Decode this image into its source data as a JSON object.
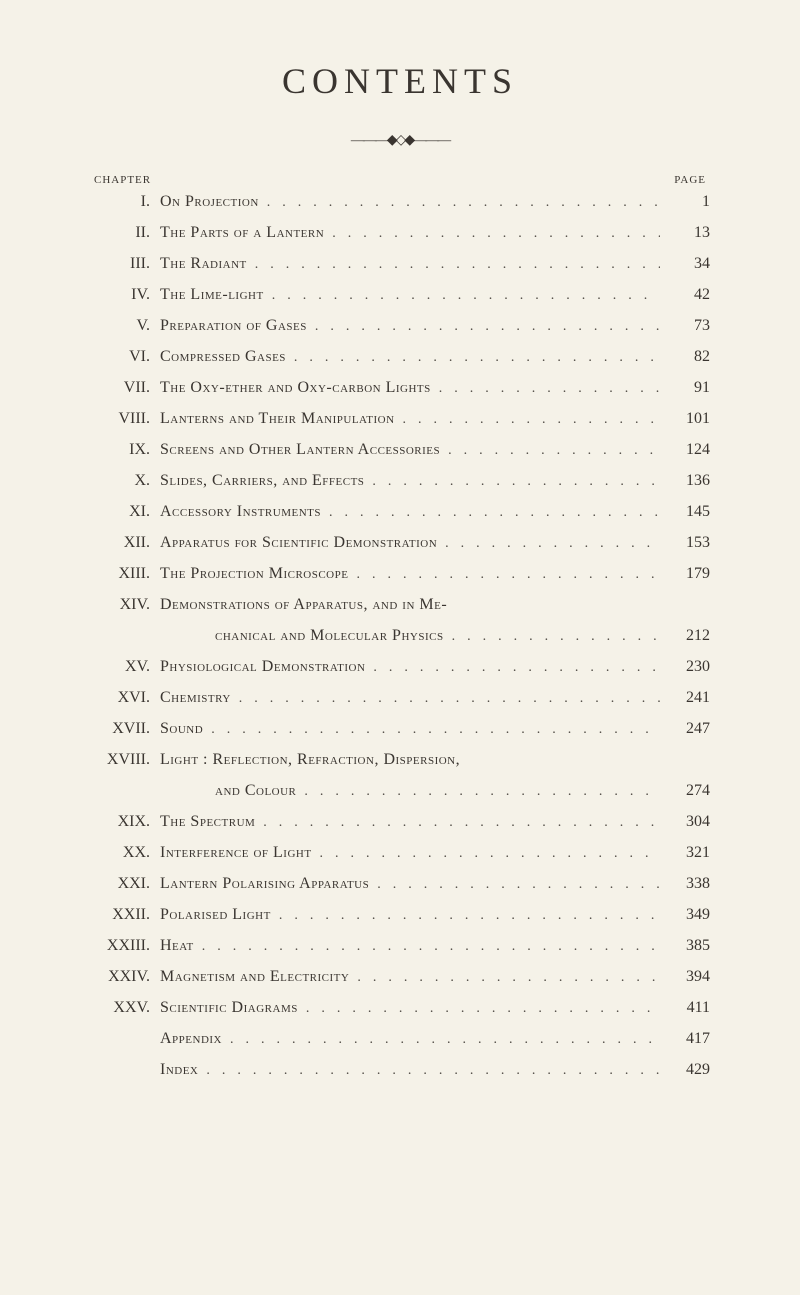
{
  "title": "CONTENTS",
  "ornament": "———◆◇◆———",
  "header": {
    "left": "CHAPTER",
    "right": "PAGE"
  },
  "entries": [
    {
      "roman": "I.",
      "text": "On Projection",
      "page": "1"
    },
    {
      "roman": "II.",
      "text": "The Parts of a Lantern",
      "page": "13"
    },
    {
      "roman": "III.",
      "text": "The Radiant",
      "page": "34"
    },
    {
      "roman": "IV.",
      "text": "The Lime-light",
      "page": "42"
    },
    {
      "roman": "V.",
      "text": "Preparation of Gases",
      "page": "73"
    },
    {
      "roman": "VI.",
      "text": "Compressed Gases",
      "page": "82"
    },
    {
      "roman": "VII.",
      "text": "The Oxy-ether and Oxy-carbon Lights",
      "page": "91"
    },
    {
      "roman": "VIII.",
      "text": "Lanterns and Their Manipulation",
      "page": "101"
    },
    {
      "roman": "IX.",
      "text": "Screens and Other Lantern Accessories",
      "page": "124"
    },
    {
      "roman": "X.",
      "text": "Slides, Carriers, and Effects",
      "page": "136"
    },
    {
      "roman": "XI.",
      "text": "Accessory Instruments",
      "page": "145"
    },
    {
      "roman": "XII.",
      "text": "Apparatus for Scientific Demonstration",
      "page": "153"
    },
    {
      "roman": "XIII.",
      "text": "The Projection Microscope",
      "page": "179"
    },
    {
      "roman": "XIV.",
      "text": "Demonstrations of Apparatus, and in Me-",
      "page": "",
      "nopage": true
    },
    {
      "roman": "",
      "text": "chanical and Molecular Physics",
      "page": "212",
      "indent": true
    },
    {
      "roman": "XV.",
      "text": "Physiological Demonstration",
      "page": "230"
    },
    {
      "roman": "XVI.",
      "text": "Chemistry",
      "page": "241"
    },
    {
      "roman": "XVII.",
      "text": "Sound",
      "page": "247"
    },
    {
      "roman": "XVIII.",
      "text": "Light : Reflection, Refraction, Dispersion,",
      "page": "",
      "nopage": true
    },
    {
      "roman": "",
      "text": "and Colour",
      "page": "274",
      "indent": true
    },
    {
      "roman": "XIX.",
      "text": "The Spectrum",
      "page": "304"
    },
    {
      "roman": "XX.",
      "text": "Interference of Light",
      "page": "321"
    },
    {
      "roman": "XXI.",
      "text": "Lantern Polarising Apparatus",
      "page": "338"
    },
    {
      "roman": "XXII.",
      "text": "Polarised Light",
      "page": "349"
    },
    {
      "roman": "XXIII.",
      "text": "Heat",
      "page": "385"
    },
    {
      "roman": "XXIV.",
      "text": "Magnetism and Electricity",
      "page": "394"
    },
    {
      "roman": "XXV.",
      "text": "Scientific Diagrams",
      "page": "411"
    },
    {
      "roman": "",
      "text": "Appendix",
      "page": "417"
    },
    {
      "roman": "",
      "text": "Index",
      "page": "429"
    }
  ]
}
